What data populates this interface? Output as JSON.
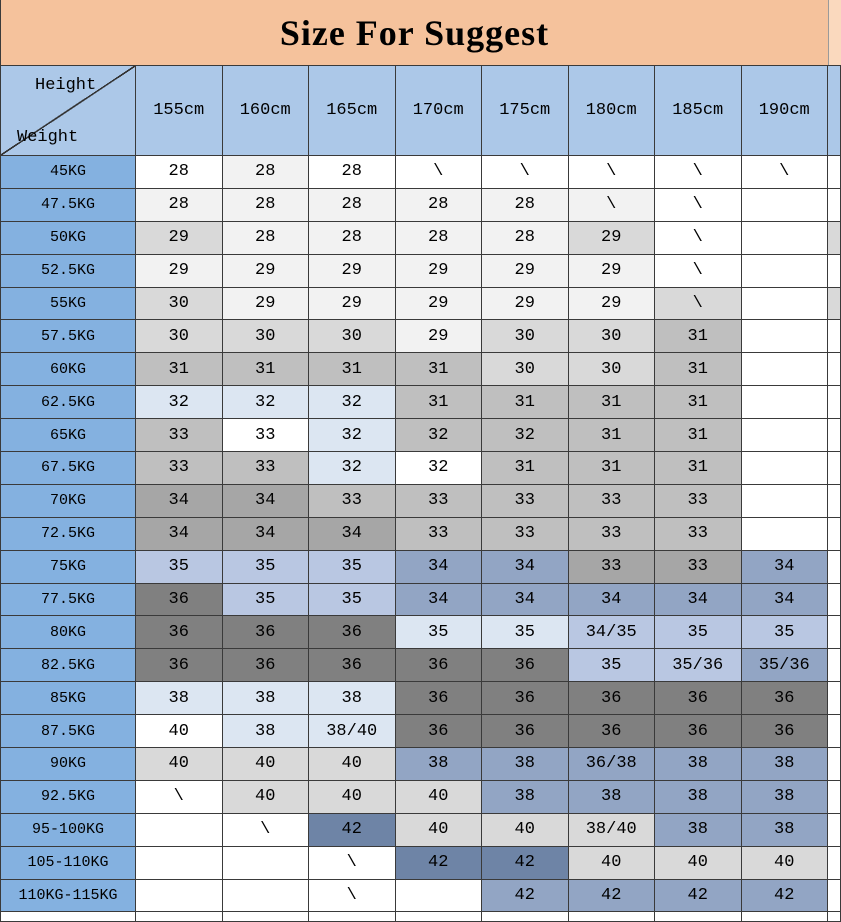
{
  "title": "Size For Suggest",
  "corner": {
    "top_label": "Height",
    "bottom_label": "Weight"
  },
  "chart_data": {
    "type": "table",
    "title": "Size For Suggest",
    "columns": [
      "155cm",
      "160cm",
      "165cm",
      "170cm",
      "175cm",
      "180cm",
      "185cm",
      "190cm"
    ],
    "row_labels": [
      "45KG",
      "47.5KG",
      "50KG",
      "52.5KG",
      "55KG",
      "57.5KG",
      "60KG",
      "62.5KG",
      "65KG",
      "67.5KG",
      "70KG",
      "72.5KG",
      "75KG",
      "77.5KG",
      "80KG",
      "82.5KG",
      "85KG",
      "87.5KG",
      "90KG",
      "92.5KG",
      "95-100KG",
      "105-110KG",
      "110KG-115KG"
    ],
    "values": [
      [
        "28",
        "28",
        "28",
        "\\",
        "\\",
        "\\",
        "\\",
        "\\"
      ],
      [
        "28",
        "28",
        "28",
        "28",
        "28",
        "\\",
        "\\",
        ""
      ],
      [
        "29",
        "28",
        "28",
        "28",
        "28",
        "29",
        "\\",
        ""
      ],
      [
        "29",
        "29",
        "29",
        "29",
        "29",
        "29",
        "\\",
        ""
      ],
      [
        "30",
        "29",
        "29",
        "29",
        "29",
        "29",
        "\\",
        ""
      ],
      [
        "30",
        "30",
        "30",
        "29",
        "30",
        "30",
        "31",
        ""
      ],
      [
        "31",
        "31",
        "31",
        "31",
        "30",
        "30",
        "31",
        ""
      ],
      [
        "32",
        "32",
        "32",
        "31",
        "31",
        "31",
        "31",
        ""
      ],
      [
        "33",
        "33",
        "32",
        "32",
        "32",
        "31",
        "31",
        ""
      ],
      [
        "33",
        "33",
        "32",
        "32",
        "31",
        "31",
        "31",
        ""
      ],
      [
        "34",
        "34",
        "33",
        "33",
        "33",
        "33",
        "33",
        ""
      ],
      [
        "34",
        "34",
        "34",
        "33",
        "33",
        "33",
        "33",
        ""
      ],
      [
        "35",
        "35",
        "35",
        "34",
        "34",
        "33",
        "33",
        "34"
      ],
      [
        "36",
        "35",
        "35",
        "34",
        "34",
        "34",
        "34",
        "34"
      ],
      [
        "36",
        "36",
        "36",
        "35",
        "35",
        "34/35",
        "35",
        "35"
      ],
      [
        "36",
        "36",
        "36",
        "36",
        "36",
        "35",
        "35/36",
        "35/36"
      ],
      [
        "38",
        "38",
        "38",
        "36",
        "36",
        "36",
        "36",
        "36"
      ],
      [
        "40",
        "38",
        "38/40",
        "36",
        "36",
        "36",
        "36",
        "36"
      ],
      [
        "40",
        "40",
        "40",
        "38",
        "38",
        "36/38",
        "38",
        "38"
      ],
      [
        "\\",
        "40",
        "40",
        "40",
        "38",
        "38",
        "38",
        "38"
      ],
      [
        "",
        "\\",
        "42",
        "40",
        "40",
        "38/40",
        "38",
        "38"
      ],
      [
        "",
        "",
        "\\",
        "42",
        "42",
        "40",
        "40",
        "40"
      ],
      [
        "",
        "",
        "\\",
        "",
        "42",
        "42",
        "42",
        "42"
      ]
    ]
  },
  "style": {
    "palette": {
      "w": "#FFFFFF",
      "g1": "#F2F2F2",
      "g2": "#D9D9D9",
      "g3": "#BFBFBF",
      "g4": "#A6A6A6",
      "g5": "#808080",
      "b1": "#DCE6F2",
      "b3": "#B9C7E2",
      "b4": "#92A5C4",
      "b5": "#6E84A6",
      "header": "#ACC8E8",
      "label": "#84B1E0",
      "banner": "#F5C29C",
      "banner_edge": "#FAD9BE"
    },
    "cell_colors": [
      [
        "w",
        "g1",
        "w",
        "w",
        "w",
        "w",
        "w",
        "w"
      ],
      [
        "g1",
        "g1",
        "g1",
        "g1",
        "g1",
        "g1",
        "w",
        "w"
      ],
      [
        "g2",
        "g1",
        "g1",
        "g1",
        "g1",
        "g2",
        "w",
        "w"
      ],
      [
        "g1",
        "g1",
        "g1",
        "g1",
        "g1",
        "g1",
        "w",
        "w"
      ],
      [
        "g2",
        "g1",
        "g1",
        "g1",
        "g1",
        "g1",
        "g2",
        "w"
      ],
      [
        "g2",
        "g2",
        "g2",
        "g1",
        "g2",
        "g2",
        "g3",
        "w"
      ],
      [
        "g3",
        "g3",
        "g3",
        "g3",
        "g2",
        "g2",
        "g3",
        "w"
      ],
      [
        "b1",
        "b1",
        "b1",
        "g3",
        "g3",
        "g3",
        "g3",
        "w"
      ],
      [
        "g3",
        "w",
        "b1",
        "g3",
        "g3",
        "g3",
        "g3",
        "w"
      ],
      [
        "g3",
        "g3",
        "b1",
        "w",
        "g3",
        "g3",
        "g3",
        "w"
      ],
      [
        "g4",
        "g4",
        "g3",
        "g3",
        "g3",
        "g3",
        "g3",
        "w"
      ],
      [
        "g4",
        "g4",
        "g4",
        "g3",
        "g3",
        "g3",
        "g3",
        "w"
      ],
      [
        "b3",
        "b3",
        "b3",
        "b4",
        "b4",
        "g4",
        "g4",
        "b4"
      ],
      [
        "g5",
        "b3",
        "b3",
        "b4",
        "b4",
        "b4",
        "b4",
        "b4"
      ],
      [
        "g5",
        "g5",
        "g5",
        "b1",
        "b1",
        "b3",
        "b3",
        "b3"
      ],
      [
        "g5",
        "g5",
        "g5",
        "g5",
        "g5",
        "b3",
        "b3",
        "b4"
      ],
      [
        "b1",
        "b1",
        "b1",
        "g5",
        "g5",
        "g5",
        "g5",
        "g5"
      ],
      [
        "w",
        "b1",
        "b1",
        "g5",
        "g5",
        "g5",
        "g5",
        "g5"
      ],
      [
        "g2",
        "g2",
        "g2",
        "b4",
        "b4",
        "b4",
        "b4",
        "b4"
      ],
      [
        "w",
        "g2",
        "g2",
        "g2",
        "b4",
        "b4",
        "b4",
        "b4"
      ],
      [
        "w",
        "w",
        "b5",
        "g2",
        "g2",
        "g2",
        "b4",
        "b4"
      ],
      [
        "w",
        "w",
        "w",
        "b5",
        "b5",
        "g2",
        "g2",
        "g2"
      ],
      [
        "w",
        "w",
        "w",
        "w",
        "b4",
        "b4",
        "b4",
        "b4"
      ]
    ],
    "edge_colors": [
      "w",
      "w",
      "g2",
      "w",
      "g2",
      "w",
      "w",
      "w",
      "w",
      "w",
      "w",
      "w",
      "w",
      "w",
      "w",
      "w",
      "w",
      "w",
      "w",
      "w",
      "w",
      "w",
      "w"
    ]
  }
}
